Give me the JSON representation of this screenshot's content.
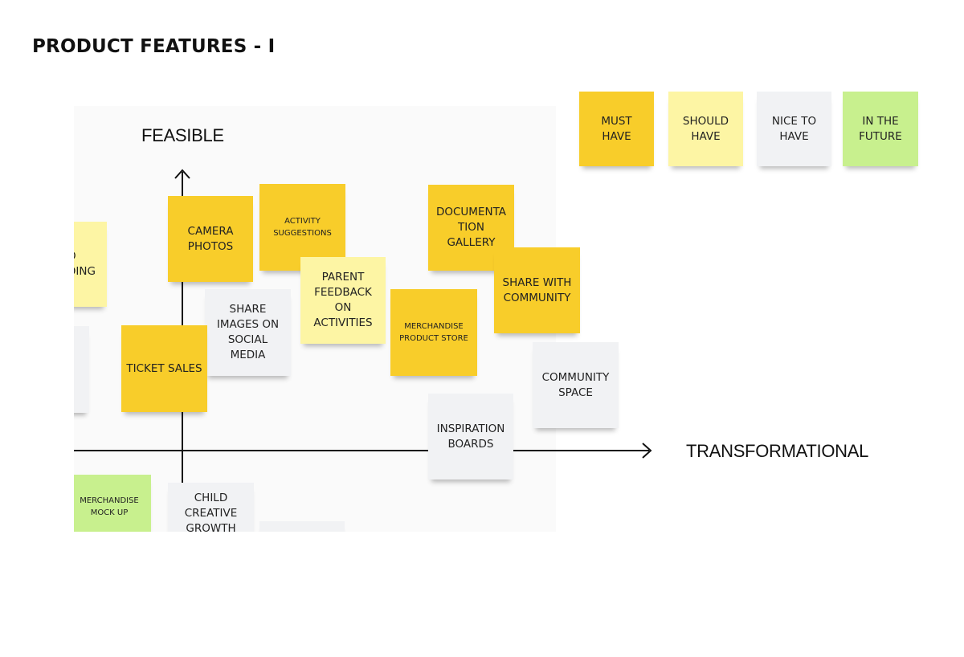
{
  "page": {
    "title": "PRODUCT FEATURES - I"
  },
  "axes": {
    "y_label": "FEASIBLE",
    "x_label": "TRANSFORMATIONAL"
  },
  "legend": [
    {
      "label": "MUST\nHAVE",
      "category": "must"
    },
    {
      "label": "SHOULD\nHAVE",
      "category": "should"
    },
    {
      "label": "NICE TO\nHAVE",
      "category": "nice"
    },
    {
      "label": "IN THE\nFUTURE",
      "category": "future"
    }
  ],
  "notes": {
    "partial_left": "O\nDING",
    "camera_photos": "CAMERA\nPHOTOS",
    "activity_suggestions": "ACTIVITY\nSUGGESTIONS",
    "documentation_gallery": "DOCUMENTA\nTION\nGALLERY",
    "parent_feedback": "PARENT\nFEEDBACK\nON\nACTIVITIES",
    "share_with_community": "SHARE WITH\nCOMMUNITY",
    "share_images": "SHARE\nIMAGES ON\nSOCIAL\nMEDIA",
    "merchandise_store": "MERCHANDISE\nPRODUCT STORE",
    "ticket_sales": "TICKET SALES",
    "community_space": "COMMUNITY\nSPACE",
    "inspiration_boards": "INSPIRATION\nBOARDS",
    "merchandise_mockup": "MERCHANDISE\nMOCK UP",
    "child_creative_growth": "CHILD\nCREATIVE\nGROWTH"
  },
  "colors": {
    "must": "#f8cd2a",
    "should": "#fdf5a4",
    "nice": "#f1f2f4",
    "future": "#c8f08e"
  }
}
